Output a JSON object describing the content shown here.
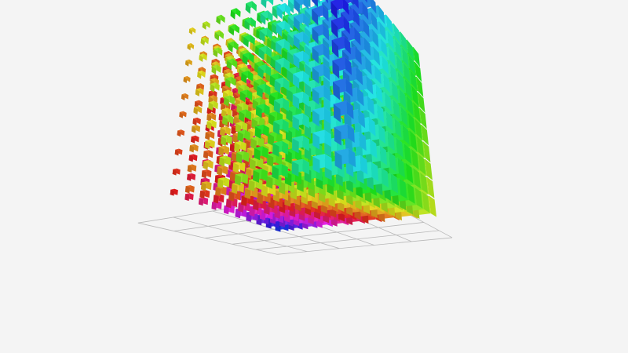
{
  "chart_data": {
    "type": "scatter3d",
    "symbol": "cube",
    "grid": true,
    "color_scheme": "rainbow",
    "colors": [
      "#e53935",
      "#e8702f",
      "#e5a23a",
      "#d7e03a",
      "#5ee23c",
      "#3ce07a",
      "#3ce0d8",
      "#3c8ee0",
      "#4a48e0",
      "#9a3ce0",
      "#d93ce0",
      "#e03c9a"
    ]
  }
}
